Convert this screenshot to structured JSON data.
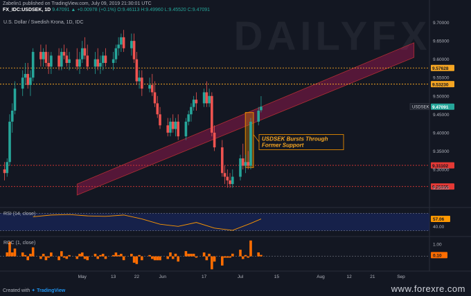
{
  "header": {
    "publish_line": "Zabelin1 published on TradingView.com, July 09, 2019 21:30:01 UTC",
    "ticker": "FX_IDC:USDSEK, 1D",
    "quote": "9.47091 ▲ +0.00978 (+0.1%) O:9.46113 H:9.49960 L:9.45520 C:9.47091"
  },
  "instrument_title": "U.S. Dollar / Swedish Krona, 1D, IDC",
  "watermark": "DAILYFX",
  "footer": {
    "created_with": "Created with",
    "brand": "TradingView"
  },
  "site_watermark": "www.forexre.com",
  "colors": {
    "background": "#131722",
    "up": "#26a69a",
    "down": "#ef5350",
    "channel": "#c2185b",
    "dotted_orange": "#f5a623",
    "dotted_red": "#e53935",
    "rsi_line": "#ff9800",
    "roc_bar": "#ff6d00",
    "annotation_box": "#e68a00"
  },
  "chart_data": [
    {
      "type": "candlestick",
      "title": "U.S. Dollar / Swedish Krona, 1D, IDC",
      "symbol": "USDSEK",
      "ylim": [
        9.2,
        9.72
      ],
      "y_ticks": [
        "9.70000",
        "9.65000",
        "9.60000",
        "9.55000",
        "9.50000",
        "9.45000",
        "9.40000",
        "9.35000",
        "9.30000",
        "9.25000"
      ],
      "x_tick_labels": [
        "May",
        "13",
        "22",
        "Jun",
        "17",
        "Jul",
        "15",
        "Aug",
        "12",
        "21",
        "Sep"
      ],
      "last_price_label": "9.47091",
      "horizontal_levels": [
        {
          "value": 9.57628,
          "label": "9.57628",
          "style": "orange"
        },
        {
          "value": 9.5323,
          "label": "9.53230",
          "style": "orange"
        },
        {
          "value": 9.31102,
          "label": "9.31102",
          "style": "red"
        },
        {
          "value": 9.25335,
          "label": "9.25335",
          "style": "red"
        }
      ],
      "channel": {
        "lower_start": [
          "2019-04-29",
          9.23
        ],
        "lower_end": [
          "2019-09-06",
          9.605
        ],
        "upper_start": [
          "2019-04-29",
          9.26
        ],
        "upper_end": [
          "2019-09-06",
          9.645
        ]
      },
      "annotation": {
        "text": "USDSEK Bursts Through Former Support",
        "line1": "USDSEK Bursts Through",
        "line2": "Former Support"
      },
      "candles": [
        {
          "d": "2019-04-01",
          "o": 9.3,
          "h": 9.32,
          "l": 9.27,
          "c": 9.29
        },
        {
          "d": "2019-04-02",
          "o": 9.29,
          "h": 9.33,
          "l": 9.28,
          "c": 9.32
        },
        {
          "d": "2019-04-03",
          "o": 9.32,
          "h": 9.45,
          "l": 9.31,
          "c": 9.43
        },
        {
          "d": "2019-04-04",
          "o": 9.43,
          "h": 9.48,
          "l": 9.4,
          "c": 9.46
        },
        {
          "d": "2019-04-05",
          "o": 9.46,
          "h": 9.54,
          "l": 9.45,
          "c": 9.52
        },
        {
          "d": "2019-04-08",
          "o": 9.52,
          "h": 9.57,
          "l": 9.5,
          "c": 9.55
        },
        {
          "d": "2019-04-09",
          "o": 9.55,
          "h": 9.59,
          "l": 9.53,
          "c": 9.56
        },
        {
          "d": "2019-04-10",
          "o": 9.56,
          "h": 9.59,
          "l": 9.52,
          "c": 9.53
        },
        {
          "d": "2019-04-11",
          "o": 9.53,
          "h": 9.57,
          "l": 9.5,
          "c": 9.55
        },
        {
          "d": "2019-04-12",
          "o": 9.55,
          "h": 9.63,
          "l": 9.54,
          "c": 9.62
        },
        {
          "d": "2019-04-15",
          "o": 9.62,
          "h": 9.64,
          "l": 9.58,
          "c": 9.6
        },
        {
          "d": "2019-04-16",
          "o": 9.6,
          "h": 9.63,
          "l": 9.58,
          "c": 9.62
        },
        {
          "d": "2019-04-17",
          "o": 9.62,
          "h": 9.64,
          "l": 9.58,
          "c": 9.59
        },
        {
          "d": "2019-04-18",
          "o": 9.59,
          "h": 9.62,
          "l": 9.56,
          "c": 9.58
        },
        {
          "d": "2019-04-19",
          "o": 9.58,
          "h": 9.62,
          "l": 9.56,
          "c": 9.61
        },
        {
          "d": "2019-04-22",
          "o": 9.61,
          "h": 9.63,
          "l": 9.57,
          "c": 9.58
        },
        {
          "d": "2019-04-23",
          "o": 9.58,
          "h": 9.63,
          "l": 9.57,
          "c": 9.62
        },
        {
          "d": "2019-04-24",
          "o": 9.62,
          "h": 9.64,
          "l": 9.6,
          "c": 9.61
        },
        {
          "d": "2019-04-25",
          "o": 9.61,
          "h": 9.63,
          "l": 9.58,
          "c": 9.59
        },
        {
          "d": "2019-04-26",
          "o": 9.59,
          "h": 9.62,
          "l": 9.57,
          "c": 9.6
        },
        {
          "d": "2019-04-29",
          "o": 9.6,
          "h": 9.63,
          "l": 9.57,
          "c": 9.58
        },
        {
          "d": "2019-04-30",
          "o": 9.58,
          "h": 9.62,
          "l": 9.56,
          "c": 9.6
        },
        {
          "d": "2019-05-01",
          "o": 9.6,
          "h": 9.65,
          "l": 9.59,
          "c": 9.63
        },
        {
          "d": "2019-05-02",
          "o": 9.63,
          "h": 9.66,
          "l": 9.6,
          "c": 9.61
        },
        {
          "d": "2019-05-03",
          "o": 9.61,
          "h": 9.64,
          "l": 9.57,
          "c": 9.58
        },
        {
          "d": "2019-05-06",
          "o": 9.58,
          "h": 9.62,
          "l": 9.56,
          "c": 9.6
        },
        {
          "d": "2019-05-07",
          "o": 9.6,
          "h": 9.63,
          "l": 9.57,
          "c": 9.58
        },
        {
          "d": "2019-05-08",
          "o": 9.58,
          "h": 9.61,
          "l": 9.56,
          "c": 9.59
        },
        {
          "d": "2019-05-09",
          "o": 9.59,
          "h": 9.62,
          "l": 9.57,
          "c": 9.61
        },
        {
          "d": "2019-05-10",
          "o": 9.61,
          "h": 9.63,
          "l": 9.58,
          "c": 9.59
        },
        {
          "d": "2019-05-13",
          "o": 9.59,
          "h": 9.62,
          "l": 9.57,
          "c": 9.6
        },
        {
          "d": "2019-05-14",
          "o": 9.6,
          "h": 9.64,
          "l": 9.59,
          "c": 9.63
        },
        {
          "d": "2019-05-15",
          "o": 9.63,
          "h": 9.66,
          "l": 9.61,
          "c": 9.64
        },
        {
          "d": "2019-05-16",
          "o": 9.64,
          "h": 9.67,
          "l": 9.62,
          "c": 9.66
        },
        {
          "d": "2019-05-17",
          "o": 9.66,
          "h": 9.68,
          "l": 9.62,
          "c": 9.63
        },
        {
          "d": "2019-05-20",
          "o": 9.63,
          "h": 9.67,
          "l": 9.61,
          "c": 9.65
        },
        {
          "d": "2019-05-21",
          "o": 9.65,
          "h": 9.67,
          "l": 9.59,
          "c": 9.6
        },
        {
          "d": "2019-05-22",
          "o": 9.6,
          "h": 9.62,
          "l": 9.53,
          "c": 9.54
        },
        {
          "d": "2019-05-23",
          "o": 9.54,
          "h": 9.57,
          "l": 9.52,
          "c": 9.55
        },
        {
          "d": "2019-05-24",
          "o": 9.55,
          "h": 9.57,
          "l": 9.5,
          "c": 9.52
        },
        {
          "d": "2019-05-27",
          "o": 9.52,
          "h": 9.55,
          "l": 9.51,
          "c": 9.53
        },
        {
          "d": "2019-05-28",
          "o": 9.53,
          "h": 9.56,
          "l": 9.5,
          "c": 9.51
        },
        {
          "d": "2019-05-29",
          "o": 9.51,
          "h": 9.54,
          "l": 9.47,
          "c": 9.48
        },
        {
          "d": "2019-05-30",
          "o": 9.48,
          "h": 9.5,
          "l": 9.44,
          "c": 9.45
        },
        {
          "d": "2019-05-31",
          "o": 9.45,
          "h": 9.47,
          "l": 9.41,
          "c": 9.42
        },
        {
          "d": "2019-06-03",
          "o": 9.42,
          "h": 9.44,
          "l": 9.39,
          "c": 9.4
        },
        {
          "d": "2019-06-04",
          "o": 9.4,
          "h": 9.44,
          "l": 9.39,
          "c": 9.43
        },
        {
          "d": "2019-06-05",
          "o": 9.43,
          "h": 9.45,
          "l": 9.4,
          "c": 9.41
        },
        {
          "d": "2019-06-06",
          "o": 9.41,
          "h": 9.44,
          "l": 9.39,
          "c": 9.43
        },
        {
          "d": "2019-06-07",
          "o": 9.43,
          "h": 9.45,
          "l": 9.38,
          "c": 9.39
        },
        {
          "d": "2019-06-10",
          "o": 9.39,
          "h": 9.44,
          "l": 9.38,
          "c": 9.43
        },
        {
          "d": "2019-06-11",
          "o": 9.43,
          "h": 9.46,
          "l": 9.42,
          "c": 9.45
        },
        {
          "d": "2019-06-12",
          "o": 9.45,
          "h": 9.48,
          "l": 9.43,
          "c": 9.47
        },
        {
          "d": "2019-06-13",
          "o": 9.47,
          "h": 9.5,
          "l": 9.46,
          "c": 9.49
        },
        {
          "d": "2019-06-14",
          "o": 9.49,
          "h": 9.51,
          "l": 9.46,
          "c": 9.48
        },
        {
          "d": "2019-06-17",
          "o": 9.48,
          "h": 9.52,
          "l": 9.47,
          "c": 9.51
        },
        {
          "d": "2019-06-18",
          "o": 9.51,
          "h": 9.54,
          "l": 9.47,
          "c": 9.48
        },
        {
          "d": "2019-06-19",
          "o": 9.48,
          "h": 9.52,
          "l": 9.47,
          "c": 9.5
        },
        {
          "d": "2019-06-20",
          "o": 9.5,
          "h": 9.51,
          "l": 9.39,
          "c": 9.4
        },
        {
          "d": "2019-06-21",
          "o": 9.4,
          "h": 9.42,
          "l": 9.35,
          "c": 9.36
        },
        {
          "d": "2019-06-24",
          "o": 9.36,
          "h": 9.38,
          "l": 9.28,
          "c": 9.29
        },
        {
          "d": "2019-06-25",
          "o": 9.29,
          "h": 9.31,
          "l": 9.26,
          "c": 9.28
        },
        {
          "d": "2019-06-26",
          "o": 9.28,
          "h": 9.3,
          "l": 9.25,
          "c": 9.27
        },
        {
          "d": "2019-06-27",
          "o": 9.27,
          "h": 9.29,
          "l": 9.25,
          "c": 9.26
        },
        {
          "d": "2019-06-28",
          "o": 9.26,
          "h": 9.3,
          "l": 9.25,
          "c": 9.28
        },
        {
          "d": "2019-07-01",
          "o": 9.28,
          "h": 9.34,
          "l": 9.27,
          "c": 9.33
        },
        {
          "d": "2019-07-02",
          "o": 9.33,
          "h": 9.37,
          "l": 9.3,
          "c": 9.31
        },
        {
          "d": "2019-07-03",
          "o": 9.31,
          "h": 9.34,
          "l": 9.29,
          "c": 9.32
        },
        {
          "d": "2019-07-04",
          "o": 9.32,
          "h": 9.35,
          "l": 9.3,
          "c": 9.31
        },
        {
          "d": "2019-07-05",
          "o": 9.31,
          "h": 9.44,
          "l": 9.3,
          "c": 9.43
        },
        {
          "d": "2019-07-08",
          "o": 9.43,
          "h": 9.47,
          "l": 9.42,
          "c": 9.46
        },
        {
          "d": "2019-07-09",
          "o": 9.46113,
          "h": 9.4996,
          "l": 9.4552,
          "c": 9.47091
        }
      ]
    },
    {
      "type": "line",
      "title": "RSI (14, close)",
      "ylim": [
        20,
        80
      ],
      "y_ticks": [
        "40.00"
      ],
      "last_value_label": "57.06",
      "levels": [
        70,
        30
      ],
      "x": [
        "2019-04-12",
        "2019-04-19",
        "2019-04-26",
        "2019-05-03",
        "2019-05-10",
        "2019-05-17",
        "2019-05-24",
        "2019-05-31",
        "2019-06-07",
        "2019-06-14",
        "2019-06-21",
        "2019-06-28",
        "2019-07-05",
        "2019-07-09"
      ],
      "values": [
        62,
        66,
        67,
        64,
        63,
        66,
        57,
        45,
        40,
        49,
        36,
        31,
        47,
        57.06
      ]
    },
    {
      "type": "bar",
      "title": "ROC (1, close)",
      "ylim": [
        -1.2,
        1.5
      ],
      "y_ticks": [
        "1.00"
      ],
      "last_value_label": "0.10",
      "values_note": "daily percent change of close"
    }
  ]
}
